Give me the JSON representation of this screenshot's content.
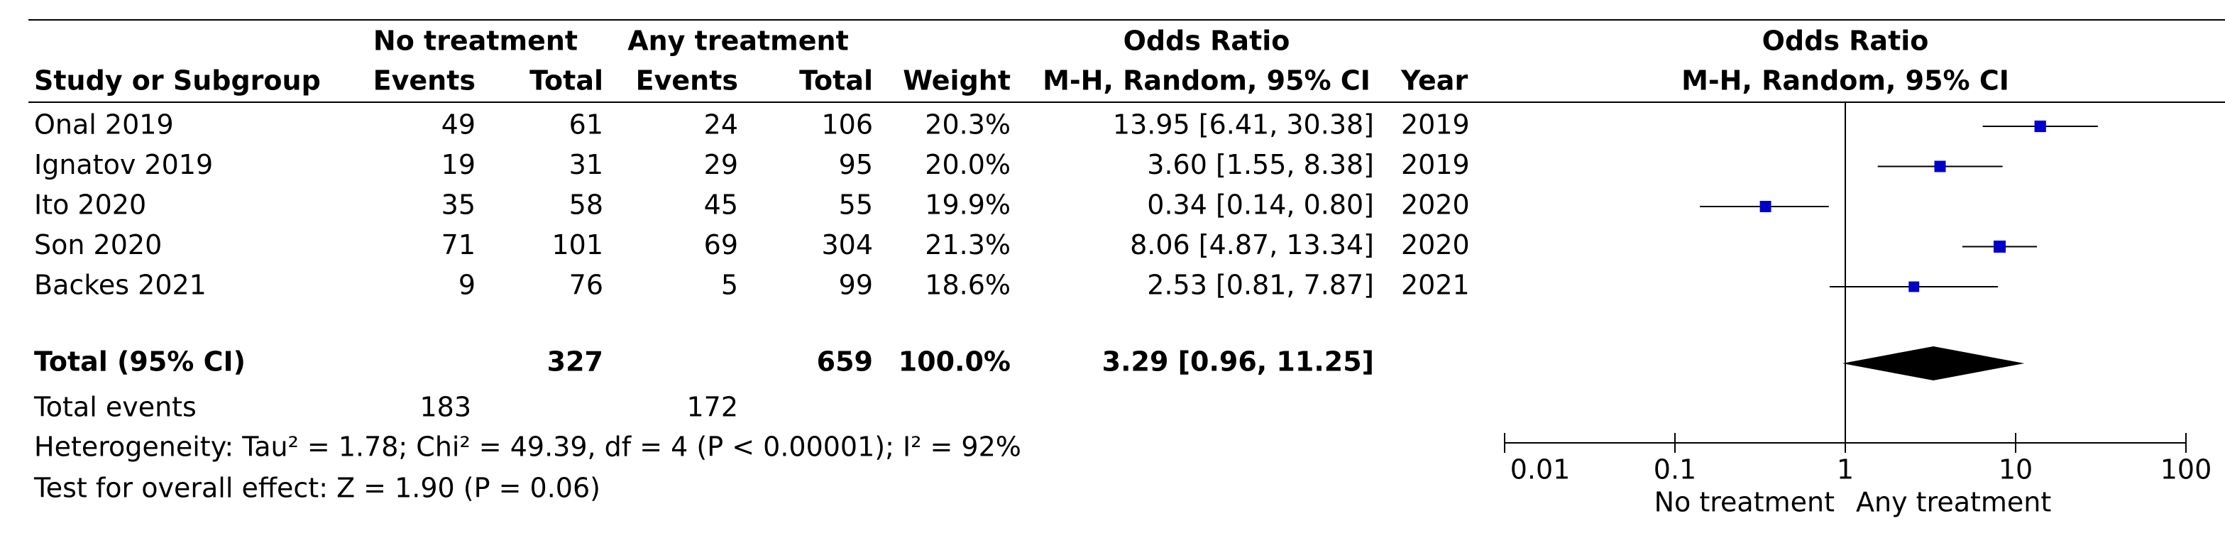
{
  "table": {
    "group_headers": [
      "No treatment",
      "Any treatment",
      "Odds Ratio"
    ],
    "columns": [
      "Study or Subgroup",
      "Events",
      "Total",
      "Events",
      "Total",
      "Weight",
      "M-H, Random, 95% CI",
      "Year"
    ],
    "rows": [
      [
        "Onal 2019",
        "49",
        "61",
        "24",
        "106",
        "20.3%",
        "13.95 [6.41, 30.38]",
        "2019"
      ],
      [
        "Ignatov 2019",
        "19",
        "31",
        "29",
        "95",
        "20.0%",
        "3.60 [1.55, 8.38]",
        "2019"
      ],
      [
        "Ito 2020",
        "35",
        "58",
        "45",
        "55",
        "19.9%",
        "0.34 [0.14, 0.80]",
        "2020"
      ],
      [
        "Son 2020",
        "71",
        "101",
        "69",
        "304",
        "21.3%",
        "8.06 [4.87, 13.34]",
        "2020"
      ],
      [
        "Backes 2021",
        "9",
        "76",
        "5",
        "99",
        "18.6%",
        "2.53 [0.81, 7.87]",
        "2021"
      ]
    ],
    "total_row": {
      "label": "Total (95% CI)",
      "total_1": "327",
      "total_2": "659",
      "weight": "100.0%",
      "ci": "3.29 [0.96, 11.25]"
    },
    "total_events": {
      "label": "Total events",
      "events_1": "183",
      "events_2": "172"
    },
    "heterogeneity": "Heterogeneity: Tau² = 1.78; Chi² = 49.39, df = 4 (P < 0.00001); I² = 92%",
    "overall_effect": "Test for overall effect: Z = 1.90 (P = 0.06)"
  },
  "chart_data": {
    "type": "forest",
    "title": "Odds Ratio",
    "subtitle": "M-H, Random, 95% CI",
    "values": [
      13.95,
      3.6,
      0.34,
      8.06,
      2.53
    ],
    "lower": [
      6.41,
      1.55,
      0.14,
      4.87,
      0.81
    ],
    "upper": [
      30.38,
      8.38,
      0.8,
      13.34,
      7.87
    ],
    "weights": [
      20.3,
      20.0,
      19.9,
      21.3,
      18.6
    ],
    "total": {
      "value": 3.29,
      "lower": 0.96,
      "upper": 11.25
    },
    "color": "#0000c8",
    "total_color": "#000000",
    "log_scale": true,
    "xlim": [
      0.01,
      100
    ],
    "xticks": [
      0.01,
      0.1,
      1,
      10,
      100
    ],
    "x_label_left": "No treatment",
    "x_label_right": "Any treatment"
  }
}
